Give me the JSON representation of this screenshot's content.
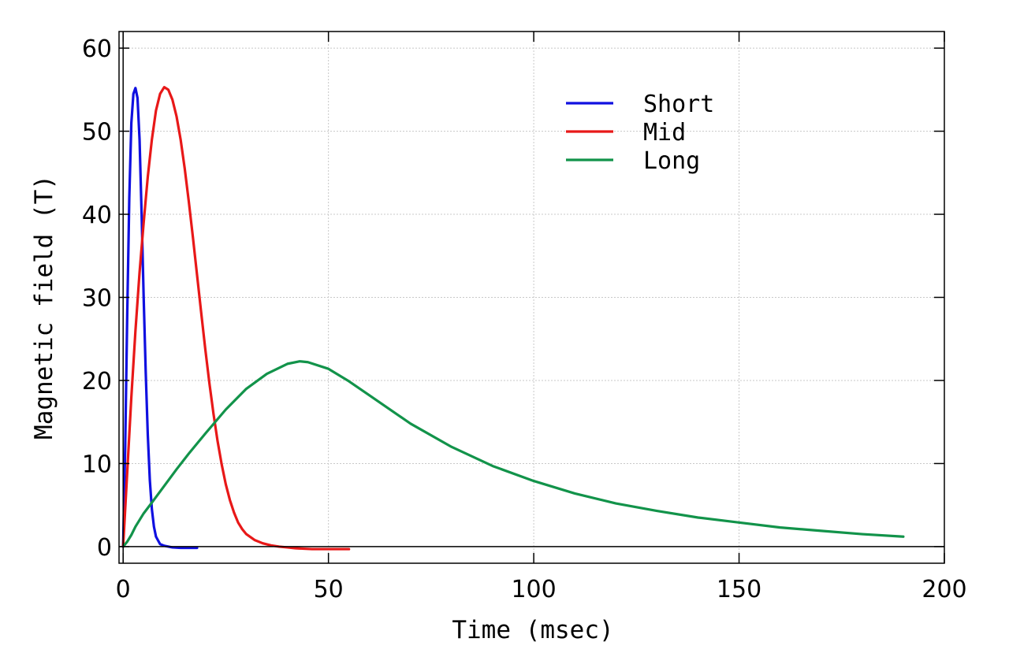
{
  "chart_data": {
    "type": "line",
    "xlabel": "Time (msec)",
    "ylabel": "Magnetic field (T)",
    "xlim": [
      -1,
      200
    ],
    "ylim": [
      -2,
      62
    ],
    "xticks": [
      0,
      50,
      100,
      150,
      200
    ],
    "yticks": [
      0,
      10,
      20,
      30,
      40,
      50,
      60
    ],
    "grid": true,
    "legend_position": "top-right",
    "series": [
      {
        "name": "Short",
        "color": "#1010e0",
        "x": [
          0,
          0.5,
          1,
          1.5,
          2,
          2.5,
          3,
          3.5,
          4,
          4.5,
          5,
          5.5,
          6,
          6.5,
          7,
          7.5,
          8,
          9,
          10,
          12,
          14,
          16,
          18
        ],
        "y": [
          0,
          12,
          28,
          42,
          51,
          54.5,
          55.2,
          54,
          49,
          40,
          30,
          21,
          13.5,
          8,
          4.5,
          2.4,
          1.2,
          0.3,
          0.1,
          -0.1,
          -0.15,
          -0.15,
          -0.15
        ]
      },
      {
        "name": "Mid",
        "color": "#e81818",
        "x": [
          0,
          1,
          2,
          3,
          4,
          5,
          6,
          7,
          8,
          9,
          10,
          11,
          12,
          13,
          14,
          15,
          16,
          17,
          18,
          19,
          20,
          21,
          22,
          23,
          24,
          25,
          26,
          27,
          28,
          29,
          30,
          32,
          34,
          36,
          38,
          40,
          42,
          44,
          46,
          48,
          50,
          55
        ],
        "y": [
          0,
          9,
          18,
          26,
          33,
          39,
          44.5,
          49,
          52.5,
          54.5,
          55.3,
          55,
          53.8,
          51.8,
          49,
          45.5,
          41.5,
          37.2,
          32.7,
          28.2,
          23.8,
          19.7,
          16,
          12.7,
          9.9,
          7.5,
          5.6,
          4.1,
          2.9,
          2.1,
          1.5,
          0.8,
          0.4,
          0.15,
          0,
          -0.1,
          -0.2,
          -0.25,
          -0.3,
          -0.3,
          -0.3,
          -0.3
        ]
      },
      {
        "name": "Long",
        "color": "#12934a",
        "x": [
          0,
          1,
          2,
          3,
          5,
          7,
          10,
          13,
          16,
          20,
          25,
          30,
          35,
          40,
          43,
          45,
          50,
          55,
          60,
          70,
          80,
          90,
          100,
          110,
          120,
          130,
          140,
          150,
          160,
          170,
          180,
          190
        ],
        "y": [
          0,
          0.6,
          1.4,
          2.4,
          4,
          5.3,
          7.3,
          9.3,
          11.2,
          13.6,
          16.5,
          19,
          20.8,
          22,
          22.3,
          22.2,
          21.4,
          19.9,
          18.2,
          14.8,
          12,
          9.7,
          7.9,
          6.4,
          5.2,
          4.3,
          3.5,
          2.9,
          2.3,
          1.9,
          1.5,
          1.2
        ]
      }
    ]
  }
}
